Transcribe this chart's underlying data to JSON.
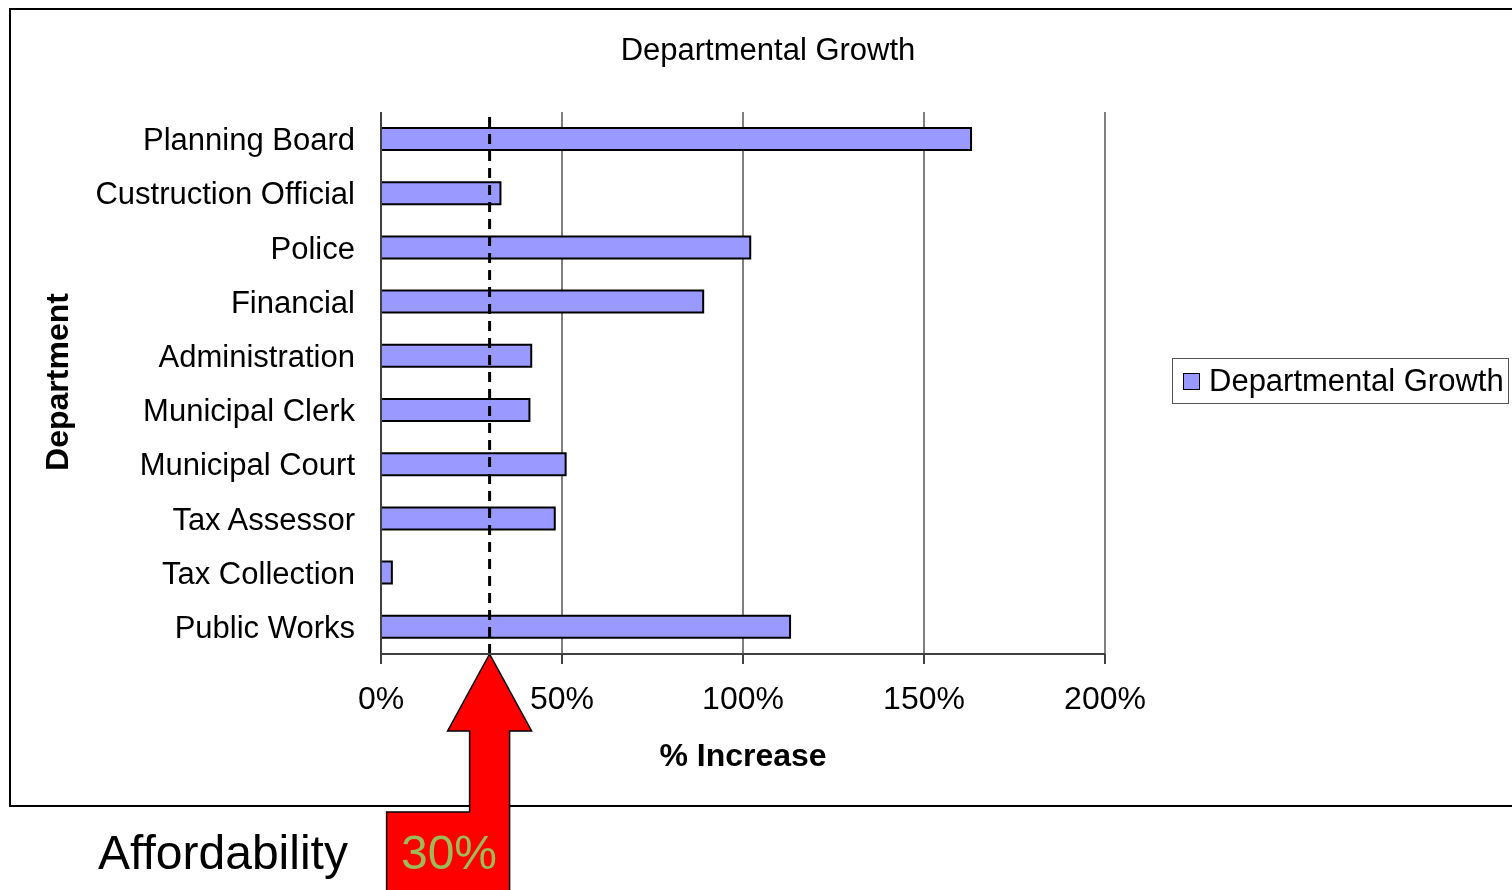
{
  "chart_data": {
    "type": "bar",
    "orientation": "horizontal",
    "title": "Departmental Growth",
    "xlabel": "% Increase",
    "ylabel": "Department",
    "categories": [
      "Planning Board",
      "Custruction Official",
      "Police",
      "Financial",
      "Administration",
      "Municipal Clerk",
      "Municipal Court",
      "Tax Assessor",
      "Tax Collection",
      "Public Works"
    ],
    "series": [
      {
        "name": "Departmental Growth",
        "color": "#9999ff",
        "values": [
          163,
          33,
          102,
          89,
          41.5,
          41,
          51,
          48,
          3,
          113
        ]
      }
    ],
    "xlim": [
      0,
      200
    ],
    "xticks": [
      {
        "value": 0,
        "label": "0%"
      },
      {
        "value": 50,
        "label": "50%"
      },
      {
        "value": 100,
        "label": "100%"
      },
      {
        "value": 150,
        "label": "150%"
      },
      {
        "value": 200,
        "label": "200%"
      }
    ],
    "grid": "x",
    "legend": "right",
    "ref_lines": [
      {
        "axis": "x",
        "value": 30,
        "color": "#000000",
        "line_style": "dashed"
      }
    ],
    "annotations": [
      "Affordability",
      "30%"
    ]
  }
}
